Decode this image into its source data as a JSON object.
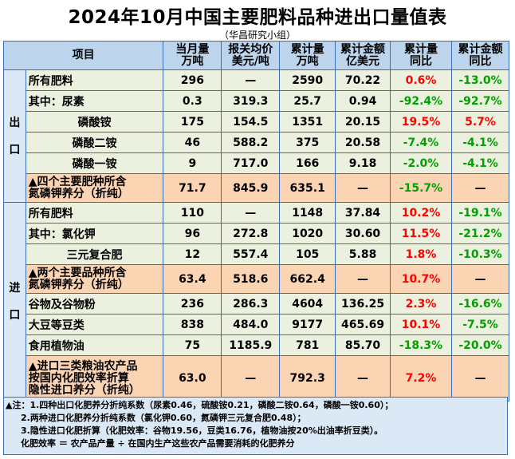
{
  "title": "2024年10月中国主要肥料品种进出口量值表",
  "subtitle": "（华昌研究小组）",
  "headers": {
    "item": "项目",
    "c1": [
      "当月量",
      "万吨"
    ],
    "c2": [
      "报关均价",
      "美元/吨"
    ],
    "c3": [
      "累计量",
      "万吨"
    ],
    "c4": [
      "累计金额",
      "亿美元"
    ],
    "c5": [
      "累计量",
      "同比"
    ],
    "c6": [
      "累计金额",
      "同比"
    ]
  },
  "sections": {
    "export": [
      "出",
      "口"
    ],
    "import": [
      "进",
      "口"
    ]
  },
  "export_rows": [
    {
      "label": "所有肥料",
      "v": [
        "296",
        "—",
        "2590",
        "70.22",
        "0.6%",
        "-13.0%"
      ]
    },
    {
      "label": "其中：尿素",
      "v": [
        "0.3",
        "319.3",
        "25.7",
        "0.94",
        "-92.4%",
        "-92.7%"
      ]
    },
    {
      "label": "磷酸铵",
      "v": [
        "175",
        "154.5",
        "1351",
        "20.15",
        "19.5%",
        "5.7%"
      ]
    },
    {
      "label": "磷酸二铵",
      "v": [
        "46",
        "588.2",
        "375",
        "20.58",
        "-7.4%",
        "-4.1%"
      ]
    },
    {
      "label": "磷酸一铵",
      "v": [
        "9",
        "717.0",
        "166",
        "9.18",
        "-2.0%",
        "-4.1%"
      ]
    },
    {
      "label": [
        "▲四个主要肥种所含",
        "氮磷钾养分（折纯）"
      ],
      "v": [
        "71.7",
        "845.9",
        "635.1",
        "—",
        "-15.7%",
        "—"
      ]
    }
  ],
  "import_rows": [
    {
      "label": "所有肥料",
      "v": [
        "110",
        "—",
        "1148",
        "37.84",
        "10.2%",
        "-19.1%"
      ]
    },
    {
      "label": "其中：氯化钾",
      "v": [
        "96",
        "272.8",
        "1020",
        "30.60",
        "11.5%",
        "-21.2%"
      ]
    },
    {
      "label": "三元复合肥",
      "v": [
        "12",
        "557.4",
        "105",
        "5.88",
        "1.8%",
        "-10.3%"
      ]
    },
    {
      "label": [
        "▲两个主要品种所含",
        "氮磷钾养分（折纯）"
      ],
      "v": [
        "63.4",
        "518.6",
        "662.4",
        "—",
        "10.7%",
        "—"
      ]
    },
    {
      "label": "谷物及谷物粉",
      "v": [
        "236",
        "286.3",
        "4604",
        "136.25",
        "2.3%",
        "-16.6%"
      ]
    },
    {
      "label": "大豆等豆类",
      "v": [
        "838",
        "484.0",
        "9177",
        "465.69",
        "10.1%",
        "-7.5%"
      ]
    },
    {
      "label": "食用植物油",
      "v": [
        "75",
        "1185.9",
        "781",
        "85.70",
        "-18.3%",
        "-20.0%"
      ]
    },
    {
      "label": [
        "▲进口三类粮油农产品",
        "按国内化肥效率折算",
        "隐性进口养分（折纯）"
      ],
      "v": [
        "63.0",
        "—",
        "792.3",
        "—",
        "7.2%",
        "—"
      ]
    }
  ],
  "notes": [
    "▲注：1.四种出口化肥养分折纯系数（尿素0.46，硫酸铵0.21，磷酸二铵0.64，磷酸一铵0.60）；",
    "2.两种进口化肥养分折纯系数（氯化钾0.60，氮磷钾三元复合肥0.48）；",
    "3.隐性进口化肥折算（化肥效率：谷物19.56，豆类16.76，植物油按20%出油率折豆类）。",
    "化肥效率 ＝ 农产品产量 ÷ 在国内生产这些农产品需要消耗的化肥养分"
  ],
  "colors": {
    "positive": "#ff0000",
    "negative": "#00a000",
    "header": "#bcd4ec",
    "green_row": "#ebf1de",
    "orange_row": "#fbd4b4",
    "border": "#3a6fb3"
  }
}
